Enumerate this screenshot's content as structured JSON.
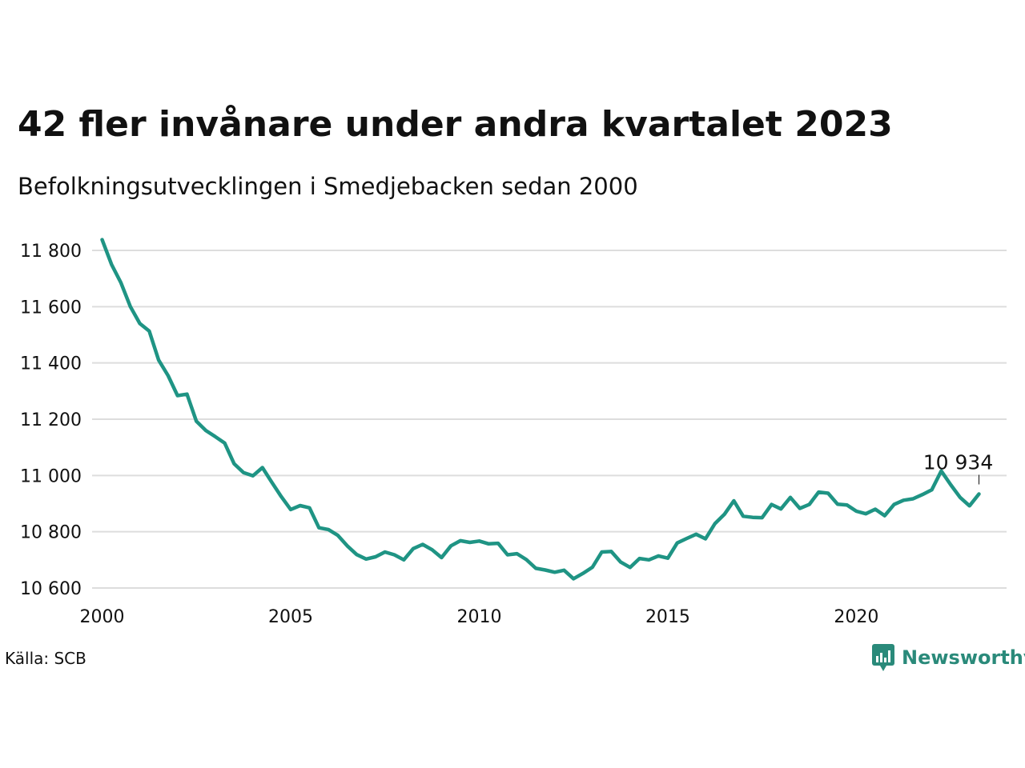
{
  "title": "42 fler invånare under andra kvartalet 2023",
  "subtitle": "Befolkningsutvecklingen i Smedjebacken sedan 2000",
  "source": "Källa: SCB",
  "brand": "Newsworthy",
  "colors": {
    "line": "#1f9484",
    "grid": "#dddddd",
    "brand": "#2a8a7a"
  },
  "chart_data": {
    "type": "line",
    "title": "42 fler invånare under andra kvartalet 2023",
    "subtitle": "Befolkningsutvecklingen i Smedjebacken sedan 2000",
    "xlabel": "",
    "ylabel": "",
    "xlim": [
      2000,
      2024.5
    ],
    "ylim": [
      10580,
      11840
    ],
    "x_ticks": [
      2000,
      2005,
      2010,
      2015,
      2020
    ],
    "x_tick_labels": [
      "2000",
      "2005",
      "2010",
      "2015",
      "2020"
    ],
    "y_ticks": [
      10600,
      10800,
      11000,
      11200,
      11400,
      11600,
      11800
    ],
    "y_tick_labels": [
      "10 600",
      "10 800",
      "11 000",
      "11 200",
      "11 400",
      "11 600",
      "11 800"
    ],
    "grid": true,
    "annotation": {
      "x": 2023.25,
      "y": 10934,
      "text": "10 934"
    },
    "series": [
      {
        "x": [
          2000.0,
          2000.25,
          2000.5,
          2000.75,
          2001.0,
          2001.25,
          2001.5,
          2001.75,
          2002.0,
          2002.25,
          2002.5,
          2002.75,
          2003.0,
          2003.25,
          2003.5,
          2003.75,
          2004.0,
          2004.25,
          2004.5,
          2004.75,
          2005.0,
          2005.25,
          2005.5,
          2005.75,
          2006.0,
          2006.25,
          2006.5,
          2006.75,
          2007.0,
          2007.25,
          2007.5,
          2007.75,
          2008.0,
          2008.25,
          2008.5,
          2008.75,
          2009.0,
          2009.25,
          2009.5,
          2009.75,
          2010.0,
          2010.25,
          2010.5,
          2010.75,
          2011.0,
          2011.25,
          2011.5,
          2011.75,
          2012.0,
          2012.25,
          2012.5,
          2012.75,
          2013.0,
          2013.25,
          2013.5,
          2013.75,
          2014.0,
          2014.25,
          2014.5,
          2014.75,
          2015.0,
          2015.25,
          2015.5,
          2015.75,
          2016.0,
          2016.25,
          2016.5,
          2016.75,
          2017.0,
          2017.25,
          2017.5,
          2017.75,
          2018.0,
          2018.25,
          2018.5,
          2018.75,
          2019.0,
          2019.25,
          2019.5,
          2019.75,
          2020.0,
          2020.25,
          2020.5,
          2020.75,
          2021.0,
          2021.25,
          2021.5,
          2021.75,
          2022.0,
          2022.25,
          2022.5,
          2022.75,
          2023.0,
          2023.25
        ],
        "values": [
          11838,
          11750,
          11685,
          11600,
          11540,
          11513,
          11410,
          11355,
          11284,
          11289,
          11193,
          11160,
          11138,
          11115,
          11042,
          11010,
          10999,
          11028,
          10976,
          10925,
          10879,
          10893,
          10885,
          10814,
          10808,
          10787,
          10750,
          10719,
          10703,
          10711,
          10728,
          10718,
          10700,
          10740,
          10755,
          10736,
          10708,
          10750,
          10768,
          10762,
          10767,
          10757,
          10759,
          10718,
          10722,
          10701,
          10670,
          10664,
          10656,
          10663,
          10633,
          10652,
          10674,
          10728,
          10730,
          10692,
          10673,
          10705,
          10700,
          10714,
          10706,
          10760,
          10776,
          10791,
          10775,
          10829,
          10862,
          10910,
          10855,
          10851,
          10850,
          10897,
          10881,
          10922,
          10883,
          10897,
          10941,
          10937,
          10898,
          10895,
          10873,
          10864,
          10880,
          10857,
          10897,
          10912,
          10917,
          10932,
          10949,
          11016,
          10967,
          10922,
          10892,
          10934
        ]
      }
    ]
  }
}
